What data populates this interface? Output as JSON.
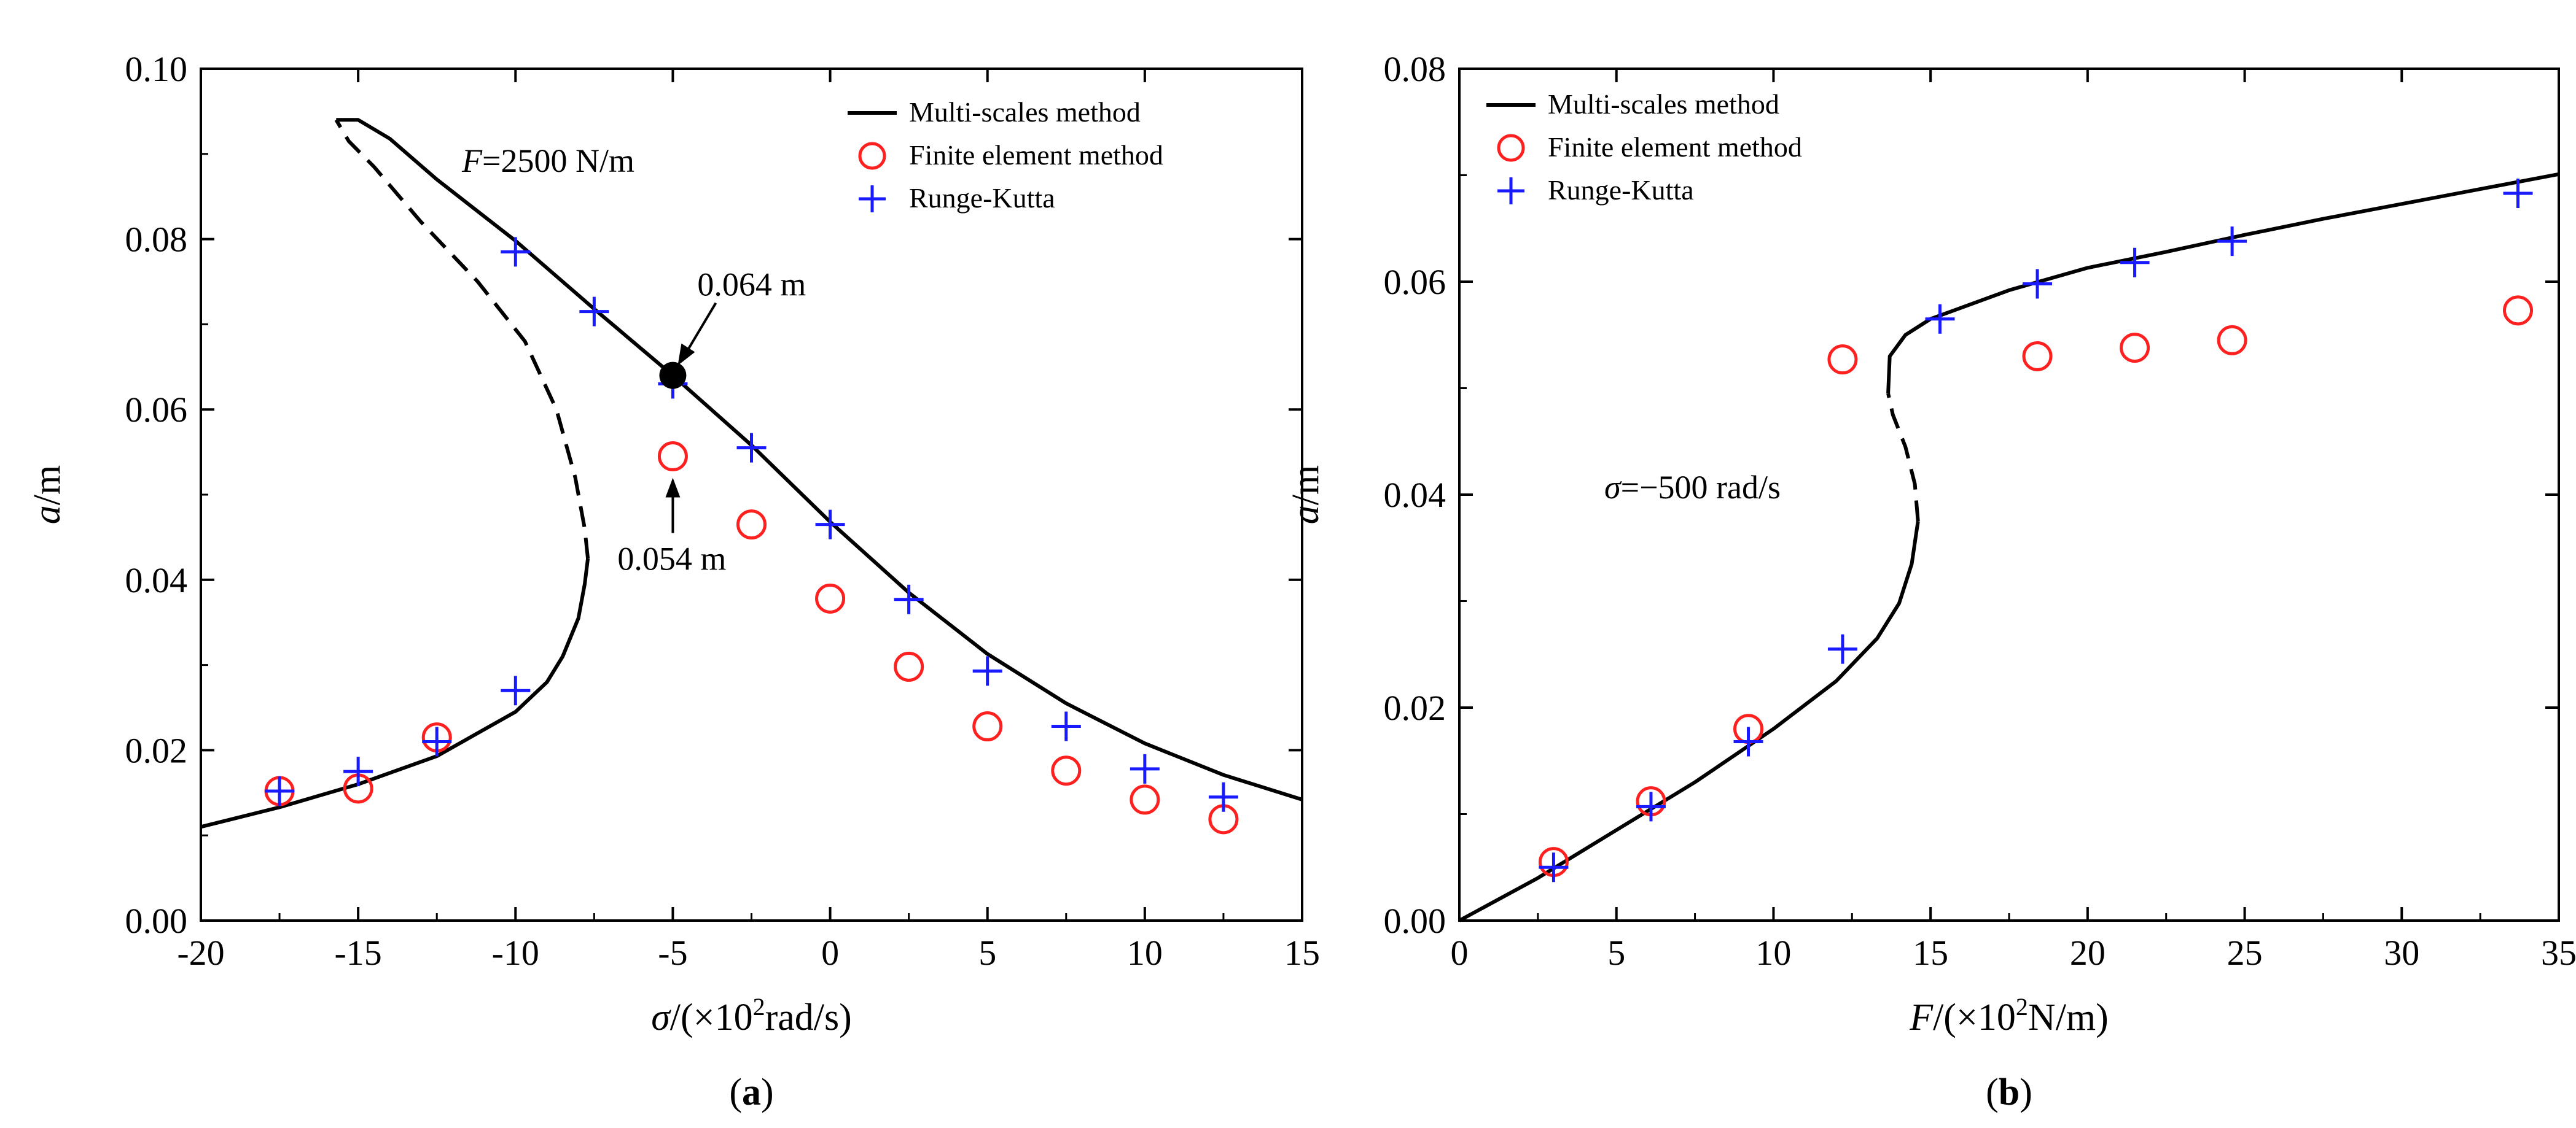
{
  "chart_data": [
    {
      "type": "line",
      "panel_label": {
        "open": "(",
        "letter": "a",
        "close": ")"
      },
      "xlabel": {
        "symbol": "σ",
        "rest": "/(×10",
        "sup": "2",
        "unit": "rad/s)"
      },
      "ylabel": {
        "symbol": "a",
        "rest": "/m"
      },
      "xlim": [
        -20,
        15
      ],
      "ylim": [
        0,
        0.1
      ],
      "xticks": [
        -20,
        -15,
        -10,
        -5,
        0,
        5,
        10,
        15
      ],
      "xtick_labels": [
        "-20",
        "-15",
        "-10",
        "-5",
        "0",
        "5",
        "10",
        "15"
      ],
      "yticks": [
        0,
        0.02,
        0.04,
        0.06,
        0.08,
        0.1
      ],
      "ytick_labels": [
        "0.00",
        "0.02",
        "0.04",
        "0.06",
        "0.08",
        "0.10"
      ],
      "legend_position": "top-right",
      "legend": [
        "Multi-scales method",
        "Finite element method",
        "Runge-Kutta"
      ],
      "annotations": {
        "param": {
          "symbol": "F",
          "text": "=2500 N/m"
        },
        "upper_marker": {
          "x": -5,
          "y": 0.064,
          "text": "0.064 m"
        },
        "lower_marker": {
          "x": -5,
          "y": 0.054,
          "text": "0.054 m"
        }
      },
      "series": [
        {
          "name": "Multi-scales method (stable)",
          "style": "solid",
          "points": [
            [
              -20,
              0.011
            ],
            [
              -17.5,
              0.0133
            ],
            [
              -15,
              0.016
            ],
            [
              -12.5,
              0.0193
            ],
            [
              -10,
              0.0245
            ],
            [
              -9,
              0.028
            ],
            [
              -8.5,
              0.031
            ],
            [
              -8,
              0.0355
            ],
            [
              -7.8,
              0.0395
            ],
            [
              -7.7,
              0.0425
            ]
          ]
        },
        {
          "name": "Multi-scales method (unstable)",
          "style": "dashed",
          "points": [
            [
              -7.7,
              0.0425
            ],
            [
              -7.8,
              0.046
            ],
            [
              -8.1,
              0.052
            ],
            [
              -8.7,
              0.06
            ],
            [
              -9.7,
              0.068
            ],
            [
              -11.2,
              0.075
            ],
            [
              -13,
              0.082
            ],
            [
              -14.5,
              0.0885
            ],
            [
              -15.3,
              0.0915
            ],
            [
              -15.7,
              0.094
            ]
          ]
        },
        {
          "name": "Multi-scales method (upper)",
          "style": "solid",
          "points": [
            [
              -15.7,
              0.094
            ],
            [
              -15,
              0.094
            ],
            [
              -14,
              0.0918
            ],
            [
              -12.5,
              0.087
            ],
            [
              -10,
              0.0798
            ],
            [
              -7.5,
              0.0718
            ],
            [
              -5,
              0.064
            ],
            [
              -2.5,
              0.0558
            ],
            [
              0,
              0.0468
            ],
            [
              2.5,
              0.0385
            ],
            [
              5,
              0.0313
            ],
            [
              7.5,
              0.0255
            ],
            [
              10,
              0.0208
            ],
            [
              12.5,
              0.0171
            ],
            [
              15,
              0.0142
            ]
          ]
        }
      ],
      "fem": {
        "x": [
          -17.5,
          -15,
          -12.5,
          -5,
          -2.5,
          0,
          2.5,
          5,
          7.5,
          10,
          12.5
        ],
        "y": [
          0.0152,
          0.0155,
          0.0215,
          0.0545,
          0.0465,
          0.0378,
          0.0298,
          0.0228,
          0.0176,
          0.0142,
          0.0119
        ]
      },
      "rk": {
        "x": [
          -17.5,
          -15,
          -12.5,
          -10,
          -10,
          -7.5,
          -5,
          -2.5,
          0,
          2.5,
          5,
          7.5,
          10,
          12.5
        ],
        "y": [
          0.0152,
          0.0175,
          0.021,
          0.027,
          0.0785,
          0.0715,
          0.063,
          0.0555,
          0.0465,
          0.0377,
          0.0293,
          0.0228,
          0.0178,
          0.0145
        ]
      }
    },
    {
      "type": "line",
      "panel_label": {
        "open": "(",
        "letter": "b",
        "close": ")"
      },
      "xlabel": {
        "symbol": "F",
        "rest": "/(×10",
        "sup": "2",
        "unit": "N/m)"
      },
      "ylabel": {
        "symbol": "a",
        "rest": "/m"
      },
      "xlim": [
        0,
        35
      ],
      "ylim": [
        0,
        0.08
      ],
      "xticks": [
        0,
        5,
        10,
        15,
        20,
        25,
        30,
        35
      ],
      "xtick_labels": [
        "0",
        "5",
        "10",
        "15",
        "20",
        "25",
        "30",
        "35"
      ],
      "yticks": [
        0,
        0.02,
        0.04,
        0.06,
        0.08
      ],
      "ytick_labels": [
        "0.00",
        "0.02",
        "0.04",
        "0.06",
        "0.08"
      ],
      "legend_position": "top-left",
      "legend": [
        "Multi-scales method",
        "Finite element method",
        "Runge-Kutta"
      ],
      "annotations": {
        "param": {
          "symbol": "σ",
          "text": "=−500 rad/s"
        }
      },
      "series": [
        {
          "name": "Multi-scales method (lower)",
          "style": "solid",
          "points": [
            [
              0,
              0
            ],
            [
              2.5,
              0.004
            ],
            [
              5,
              0.0085
            ],
            [
              7.5,
              0.013
            ],
            [
              10,
              0.018
            ],
            [
              12,
              0.0225
            ],
            [
              13.3,
              0.0265
            ],
            [
              14,
              0.0298
            ],
            [
              14.4,
              0.0335
            ],
            [
              14.6,
              0.0375
            ]
          ]
        },
        {
          "name": "Multi-scales method (unstable)",
          "style": "dashed",
          "points": [
            [
              14.6,
              0.0375
            ],
            [
              14.5,
              0.041
            ],
            [
              14.2,
              0.0445
            ],
            [
              13.8,
              0.0475
            ],
            [
              13.65,
              0.0495
            ]
          ]
        },
        {
          "name": "Multi-scales method (upper)",
          "style": "solid",
          "points": [
            [
              13.65,
              0.0495
            ],
            [
              13.7,
              0.053
            ],
            [
              14.2,
              0.055
            ],
            [
              15,
              0.0565
            ],
            [
              17.5,
              0.0592
            ],
            [
              20,
              0.0613
            ],
            [
              22.5,
              0.0628
            ],
            [
              25,
              0.0644
            ],
            [
              27.5,
              0.0659
            ],
            [
              30,
              0.0673
            ],
            [
              32.5,
              0.0687
            ],
            [
              35,
              0.0701
            ]
          ]
        }
      ],
      "fem": {
        "x": [
          3,
          6.1,
          9.2,
          12.2,
          18.4,
          21.5,
          24.6,
          33.7
        ],
        "y": [
          0.0055,
          0.0112,
          0.018,
          0.0527,
          0.053,
          0.0538,
          0.0545,
          0.0573
        ]
      },
      "rk": {
        "x": [
          3,
          6.1,
          9.2,
          12.2,
          15.3,
          18.4,
          21.5,
          24.6,
          33.7
        ],
        "y": [
          0.005,
          0.0107,
          0.0168,
          0.0255,
          0.0565,
          0.0598,
          0.0618,
          0.0638,
          0.0683
        ]
      }
    }
  ],
  "colors": {
    "line": "#000000",
    "fem": "#ff2020",
    "rk": "#1a1aff"
  }
}
